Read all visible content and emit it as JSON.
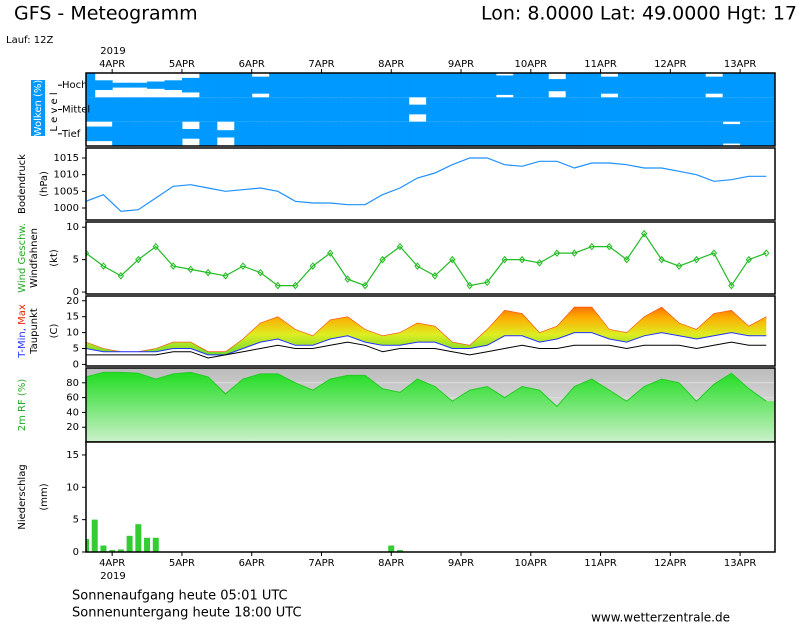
{
  "header": {
    "title": "GFS - Meteogramm",
    "location": "Lon: 8.0000  Lat: 49.0000  Hgt: 17",
    "run": "Lauf: 12Z"
  },
  "time_axis": {
    "year": "2019",
    "xlim": [
      0,
      79
    ],
    "xticks": [
      {
        "value": 3,
        "label": "4APR"
      },
      {
        "value": 11,
        "label": "5APR"
      },
      {
        "value": 19,
        "label": "6APR"
      },
      {
        "value": 27,
        "label": "7APR"
      },
      {
        "value": 35,
        "label": "8APR"
      },
      {
        "value": 43,
        "label": "9APR"
      },
      {
        "value": 51,
        "label": "10APR"
      },
      {
        "value": 59,
        "label": "11APR"
      },
      {
        "value": 67,
        "label": "12APR"
      },
      {
        "value": 75,
        "label": "13APR"
      }
    ],
    "x": [
      0,
      2,
      4,
      6,
      8,
      10,
      12,
      14,
      16,
      18,
      20,
      22,
      24,
      26,
      28,
      30,
      32,
      34,
      36,
      38,
      40,
      42,
      44,
      46,
      48,
      50,
      52,
      54,
      56,
      58,
      60,
      62,
      64,
      66,
      68,
      70,
      72,
      74,
      76,
      78
    ]
  },
  "chart_data": [
    {
      "type": "cloud",
      "ylabel": "Wolken (%)",
      "ylabel2": "L e v e l",
      "ylim": [
        0,
        100
      ],
      "series": [
        {
          "name": "Hoch",
          "color": "#0099ff",
          "values": [
            100,
            40,
            20,
            20,
            30,
            40,
            60,
            100,
            100,
            100,
            70,
            100,
            100,
            100,
            100,
            100,
            100,
            100,
            100,
            100,
            100,
            100,
            100,
            100,
            80,
            100,
            100,
            50,
            100,
            100,
            70,
            100,
            100,
            100,
            100,
            100,
            70,
            100,
            100,
            100
          ]
        },
        {
          "name": "Mittel",
          "color": "#0099ff",
          "values": [
            100,
            100,
            100,
            100,
            100,
            100,
            100,
            100,
            100,
            100,
            100,
            100,
            100,
            100,
            100,
            100,
            100,
            100,
            100,
            40,
            100,
            100,
            100,
            100,
            100,
            100,
            100,
            100,
            100,
            100,
            100,
            100,
            100,
            100,
            100,
            100,
            100,
            100,
            100,
            100
          ]
        },
        {
          "name": "Tief",
          "color": "#0099ff",
          "values": [
            60,
            60,
            100,
            100,
            100,
            100,
            40,
            100,
            30,
            100,
            100,
            100,
            100,
            100,
            100,
            100,
            100,
            100,
            100,
            100,
            100,
            100,
            100,
            100,
            100,
            100,
            100,
            100,
            100,
            100,
            100,
            100,
            100,
            100,
            100,
            100,
            100,
            80,
            100,
            100
          ]
        }
      ]
    },
    {
      "type": "line",
      "ylabel": "Bodendruck",
      "ylabel2": "(hPa)",
      "ylim": [
        996.4,
        1018
      ],
      "yticks": [
        1000,
        1005,
        1010,
        1015
      ],
      "series": [
        {
          "color": "#1e90ff",
          "values": [
            1002,
            1004,
            999,
            999.5,
            1003,
            1006.5,
            1007,
            1006,
            1005,
            1005.5,
            1006,
            1005,
            1002,
            1001.5,
            1001.5,
            1001,
            1001,
            1004,
            1006,
            1009,
            1010.5,
            1013,
            1015,
            1015,
            1013,
            1012.5,
            1014,
            1014,
            1012,
            1013.5,
            1013.5,
            1013,
            1012,
            1012,
            1011,
            1010,
            1008,
            1008.5,
            1009.5,
            1009.5
          ]
        }
      ]
    },
    {
      "type": "wind",
      "ylabel": "Wind Geschw.",
      "ylabel2": "Windfahnen",
      "ylabel3": "(kt)",
      "ylim": [
        -0.3,
        10.8
      ],
      "yticks": [
        0,
        5,
        10
      ],
      "series": [
        {
          "color": "#22bb22",
          "values": [
            6,
            4,
            2.5,
            5,
            7,
            4,
            3.5,
            3,
            2.5,
            4,
            3,
            1,
            1,
            4,
            6,
            2,
            1,
            5,
            7,
            4,
            2.5,
            5,
            1,
            1.5,
            5,
            5,
            4.5,
            6,
            6,
            7,
            7,
            5,
            9,
            5,
            4,
            5,
            6,
            1,
            5,
            6
          ]
        }
      ]
    },
    {
      "type": "temp",
      "ylabel_parts": [
        "T-Min,",
        "Max"
      ],
      "ylabel2": "Taupunkt",
      "ylabel3": "(C)",
      "ylim": [
        -0.5,
        21.5
      ],
      "yticks": [
        0,
        5,
        10,
        15,
        20
      ],
      "series": [
        {
          "color": "#ff4400",
          "values": [
            7,
            5,
            4,
            4,
            5,
            7,
            7,
            4,
            4,
            8,
            13,
            15,
            11,
            9,
            14,
            15,
            11,
            9,
            10,
            13,
            12,
            7,
            6,
            11,
            17,
            16,
            10,
            12,
            18,
            18,
            11,
            10,
            15,
            18,
            13,
            11,
            16,
            17,
            12,
            15
          ]
        },
        {
          "color": "#2233ff",
          "values": [
            5,
            4,
            4,
            4,
            4,
            5,
            5,
            3,
            3,
            5,
            7,
            8,
            6,
            6,
            8,
            9,
            7,
            6,
            6,
            7,
            7,
            5,
            5,
            6,
            9,
            9,
            7,
            8,
            10,
            10,
            8,
            7,
            9,
            10,
            9,
            8,
            9,
            10,
            9,
            9
          ]
        },
        {
          "color": "#000000",
          "values": [
            3,
            3,
            3,
            3,
            3,
            4,
            4,
            2,
            3,
            4,
            5,
            6,
            5,
            5,
            6,
            7,
            6,
            4,
            5,
            5,
            5,
            4,
            3,
            4,
            5,
            6,
            5,
            5,
            6,
            6,
            6,
            5,
            6,
            6,
            6,
            5,
            6,
            7,
            6,
            6
          ]
        }
      ]
    },
    {
      "type": "area",
      "ylabel": "2m RF (%)",
      "ylim": [
        0,
        100
      ],
      "yticks": [
        20,
        40,
        60,
        80
      ],
      "series": [
        {
          "color": "#22cc22",
          "values": [
            88,
            94,
            94,
            93,
            85,
            92,
            94,
            88,
            65,
            85,
            92,
            92,
            80,
            70,
            85,
            90,
            90,
            72,
            67,
            85,
            75,
            55,
            70,
            75,
            60,
            75,
            70,
            48,
            75,
            85,
            70,
            55,
            75,
            85,
            80,
            55,
            78,
            93,
            72,
            55
          ]
        }
      ]
    },
    {
      "type": "bar",
      "ylabel": "Niederschlag",
      "ylabel2": "(mm)",
      "ylim": [
        0,
        17
      ],
      "yticks": [
        0,
        5,
        10,
        15
      ],
      "x": [
        0,
        1,
        2,
        3,
        4,
        5,
        6,
        7,
        8,
        35,
        36
      ],
      "series": [
        {
          "color": "#33cc33",
          "values": [
            2,
            5,
            1,
            0.3,
            0.4,
            2.5,
            4.3,
            2.2,
            2.2,
            1,
            0.3
          ]
        }
      ]
    }
  ],
  "footer": {
    "sunrise": "Sonnenaufgang heute 05:01 UTC",
    "sunset": "Sonnenuntergang heute 18:00 UTC",
    "source": "www.wetterzentrale.de"
  }
}
